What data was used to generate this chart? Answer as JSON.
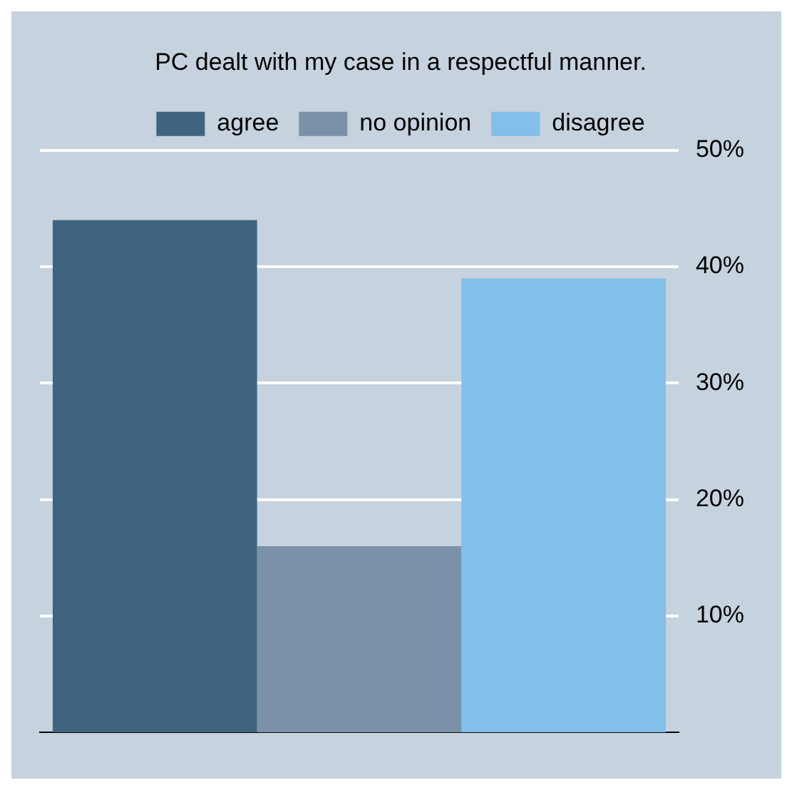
{
  "chart_data": {
    "type": "bar",
    "title": "PC dealt with my case in a respectful manner.",
    "categories": [
      null
    ],
    "series": [
      {
        "name": "agree",
        "color": "#3e6480",
        "values": [
          44
        ]
      },
      {
        "name": "no opinion",
        "color": "#7b91a8",
        "values": [
          16
        ]
      },
      {
        "name": "disagree",
        "color": "#82bfea",
        "values": [
          39
        ]
      }
    ],
    "ylim": [
      0,
      50
    ],
    "yticks": [
      {
        "value": 10,
        "label": "10%"
      },
      {
        "value": 20,
        "label": "20%"
      },
      {
        "value": 30,
        "label": "30%"
      },
      {
        "value": 40,
        "label": "40%"
      },
      {
        "value": 50,
        "label": "50%"
      }
    ],
    "grid": true,
    "legend": "top"
  }
}
